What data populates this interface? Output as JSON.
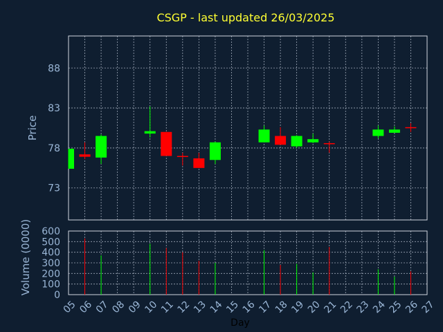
{
  "chart_data": [
    {
      "type": "candlestick",
      "title": "CSGP - last updated 26/03/2025",
      "ylabel": "Price",
      "ylim": [
        69,
        92
      ],
      "yticks": [
        73,
        78,
        83,
        88
      ],
      "ytick_labels": [
        "73",
        "78",
        "83",
        "88"
      ],
      "grid": true,
      "colors": {
        "up": "#00ff00",
        "down": "#ff0000"
      },
      "series": [
        {
          "day": 5,
          "open": 75.4,
          "high": 77.9,
          "low": 75.4,
          "close": 77.9
        },
        {
          "day": 6,
          "open": 77.2,
          "high": 78.7,
          "low": 76.6,
          "close": 76.9
        },
        {
          "day": 7,
          "open": 76.8,
          "high": 79.7,
          "low": 76.0,
          "close": 79.5
        },
        {
          "day": 10,
          "open": 79.8,
          "high": 83.2,
          "low": 79.3,
          "close": 80.1
        },
        {
          "day": 11,
          "open": 80.0,
          "high": 80.0,
          "low": 77.0,
          "close": 77.0
        },
        {
          "day": 12,
          "open": 77.0,
          "high": 77.4,
          "low": 75.8,
          "close": 76.9
        },
        {
          "day": 13,
          "open": 76.7,
          "high": 77.4,
          "low": 75.5,
          "close": 75.5
        },
        {
          "day": 14,
          "open": 76.5,
          "high": 78.8,
          "low": 76.0,
          "close": 78.7
        },
        {
          "day": 17,
          "open": 78.7,
          "high": 80.8,
          "low": 78.7,
          "close": 80.3
        },
        {
          "day": 18,
          "open": 79.5,
          "high": 80.6,
          "low": 78.4,
          "close": 78.4
        },
        {
          "day": 19,
          "open": 78.2,
          "high": 79.6,
          "low": 78.0,
          "close": 79.5
        },
        {
          "day": 20,
          "open": 78.7,
          "high": 79.8,
          "low": 78.6,
          "close": 79.1
        },
        {
          "day": 21,
          "open": 78.6,
          "high": 78.8,
          "low": 77.4,
          "close": 78.5
        },
        {
          "day": 24,
          "open": 79.5,
          "high": 80.8,
          "low": 79.2,
          "close": 80.3
        },
        {
          "day": 25,
          "open": 79.9,
          "high": 80.7,
          "low": 79.9,
          "close": 80.3
        },
        {
          "day": 26,
          "open": 80.6,
          "high": 81.1,
          "low": 80.0,
          "close": 80.5
        }
      ]
    },
    {
      "type": "bar",
      "xlabel": "Day",
      "ylabel": "Volume (0000)",
      "ylim": [
        0,
        600
      ],
      "yticks": [
        0,
        100,
        200,
        300,
        400,
        500,
        600
      ],
      "ytick_labels": [
        "0",
        "100",
        "200",
        "300",
        "400",
        "500",
        "600"
      ],
      "x_range": [
        5,
        27
      ],
      "x_tick_labels": [
        "05",
        "06",
        "07",
        "08",
        "09",
        "10",
        "11",
        "12",
        "13",
        "14",
        "15",
        "16",
        "17",
        "18",
        "19",
        "20",
        "21",
        "22",
        "23",
        "24",
        "25",
        "26",
        "27"
      ],
      "grid": true,
      "series": [
        {
          "day": 6,
          "value": 530,
          "color": "#ff0000"
        },
        {
          "day": 7,
          "value": 370,
          "color": "#00ff00"
        },
        {
          "day": 10,
          "value": 480,
          "color": "#00ff00"
        },
        {
          "day": 11,
          "value": 440,
          "color": "#ff0000"
        },
        {
          "day": 12,
          "value": 400,
          "color": "#ff0000"
        },
        {
          "day": 13,
          "value": 320,
          "color": "#ff0000"
        },
        {
          "day": 14,
          "value": 300,
          "color": "#00ff00"
        },
        {
          "day": 17,
          "value": 420,
          "color": "#00ff00"
        },
        {
          "day": 18,
          "value": 280,
          "color": "#ff0000"
        },
        {
          "day": 19,
          "value": 290,
          "color": "#00ff00"
        },
        {
          "day": 20,
          "value": 210,
          "color": "#00ff00"
        },
        {
          "day": 21,
          "value": 450,
          "color": "#ff0000"
        },
        {
          "day": 24,
          "value": 240,
          "color": "#00ff00"
        },
        {
          "day": 25,
          "value": 170,
          "color": "#00ff00"
        },
        {
          "day": 26,
          "value": 220,
          "color": "#ff0000"
        }
      ]
    }
  ]
}
